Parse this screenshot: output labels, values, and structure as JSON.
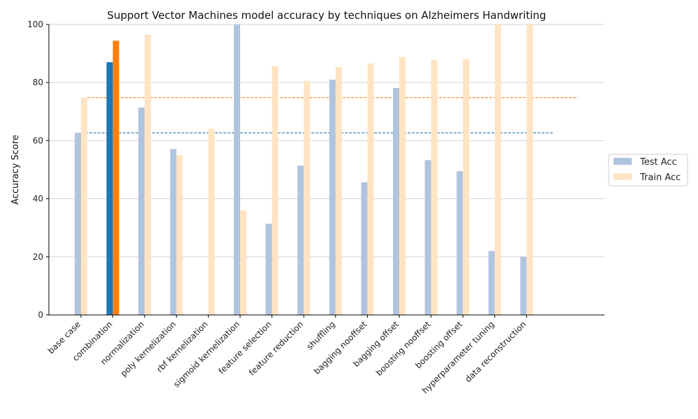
{
  "chart_data": {
    "type": "bar",
    "title": "Support Vector Machines model accuracy by techniques on Alzheimers Handwriting",
    "xlabel": "",
    "ylabel": "Accuracy Score",
    "ylim": [
      0,
      100
    ],
    "yticks": [
      0,
      20,
      40,
      60,
      80,
      100
    ],
    "grid": "horizontal",
    "legend_position": "right",
    "categories": [
      "base case",
      "combination",
      "normalization",
      "poly kernelization",
      "rbf kernelization",
      "sigmoid kernelization",
      "feature selection",
      "feature reduction",
      "shuffling",
      "bagging nooffset",
      "bagging offset",
      "boosting nooffset",
      "boosting offset",
      "hyperparameter tuning",
      "data reconstruction"
    ],
    "series": [
      {
        "name": "Test Acc",
        "color": "#b0c4de",
        "values": [
          62.7,
          87.0,
          71.4,
          57.1,
          0,
          100.0,
          31.4,
          51.4,
          81.0,
          45.7,
          78.1,
          53.3,
          49.5,
          22.0,
          20.0
        ]
      },
      {
        "name": "Train Acc",
        "color": "#ffe4c4",
        "values": [
          74.8,
          94.4,
          96.5,
          55.0,
          64.1,
          36.0,
          85.6,
          80.6,
          85.3,
          86.6,
          88.8,
          87.8,
          88.1,
          100.0,
          100.0
        ]
      }
    ],
    "highlight": {
      "category": "combination",
      "test_color": "#1f77b4",
      "train_color": "#ff7f0e"
    },
    "reference_lines": [
      {
        "series": "Test Acc",
        "value": 62.7,
        "color": "#1f77b4",
        "style": "dashed"
      },
      {
        "series": "Train Acc",
        "value": 74.8,
        "color": "#ff7f0e",
        "style": "dashed"
      }
    ]
  }
}
